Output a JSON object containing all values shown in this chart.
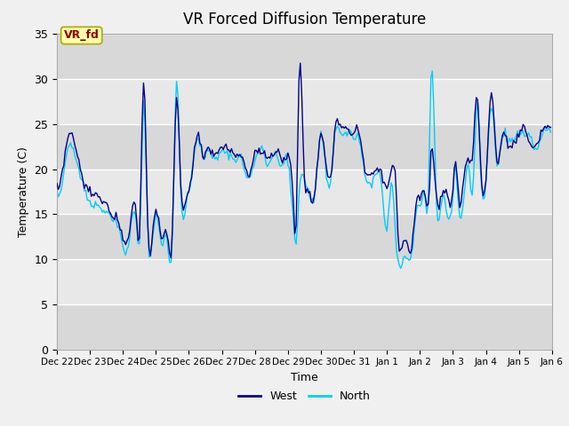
{
  "title": "VR Forced Diffusion Temperature",
  "xlabel": "Time",
  "ylabel": "Temperature (C)",
  "ylim": [
    0,
    35
  ],
  "yticks": [
    0,
    5,
    10,
    15,
    20,
    25,
    30,
    35
  ],
  "xtick_labels": [
    "Dec 22",
    "Dec 23",
    "Dec 24",
    "Dec 25",
    "Dec 26",
    "Dec 27",
    "Dec 28",
    "Dec 29",
    "Dec 30",
    "Dec 31",
    "Jan 1",
    "Jan 2",
    "Jan 3",
    "Jan 4",
    "Jan 5",
    "Jan 6"
  ],
  "west_color": "#00008B",
  "north_color": "#00CCFF",
  "label_west": "West",
  "label_north": "North",
  "annotation_text": "VR_fd",
  "annotation_bg": "#FFFFAA",
  "annotation_border": "#AAAA00",
  "annotation_text_color": "#8B0000",
  "fig_bg": "#F0F0F0",
  "plot_bg_light": "#E8E8E8",
  "plot_bg_dark": "#D8D8D8",
  "grid_color": "#FFFFFF",
  "line_width": 1.0,
  "title_fontsize": 12,
  "band_boundaries": [
    0,
    5,
    10,
    15,
    20,
    25,
    30,
    35
  ]
}
